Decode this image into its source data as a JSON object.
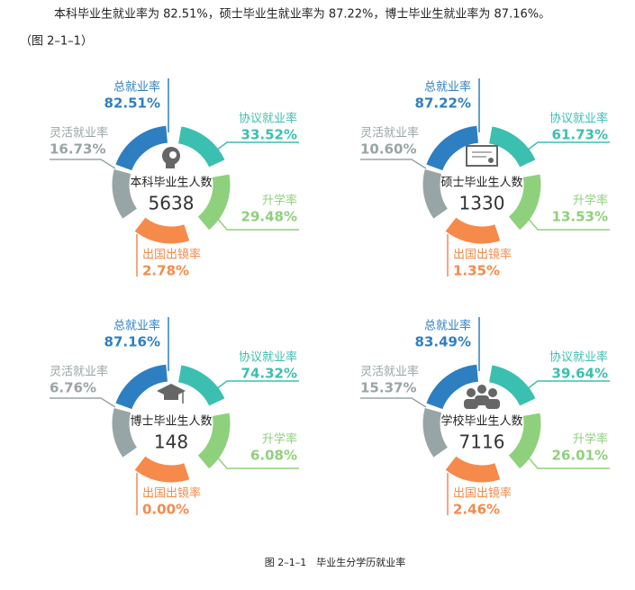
{
  "intro": {
    "text": "本科毕业生就业率为 82.51%，硕士毕业生就业率为 87.22%，博士毕业生就业率为 87.16%。",
    "figure_ref": "（图 2–1–1）"
  },
  "panels": [
    {
      "title": "本科毕业生人数",
      "count": "5638",
      "total_label": "总就业率",
      "total_value": "82.51%",
      "agreement_label": "协议就业率",
      "agreement_value": "33.52%",
      "further_label": "升学率",
      "further_value": "29.48%",
      "abroad_label": "出国出镜率",
      "abroad_value": "2.78%",
      "flexible_label": "灵活就业率",
      "flexible_value": "16.73%"
    },
    {
      "title": "硕士毕业生人数",
      "count": "1330",
      "total_label": "总就业率",
      "total_value": "87.22%",
      "agreement_label": "协议就业率",
      "agreement_value": "61.73%",
      "further_label": "升学率",
      "further_value": "13.53%",
      "abroad_label": "出国出镜率",
      "abroad_value": "1.35%",
      "flexible_label": "灵活就业率",
      "flexible_value": "10.60%"
    },
    {
      "title": "博士毕业生人数",
      "count": "148",
      "total_label": "总就业率",
      "total_value": "87.16%",
      "agreement_label": "协议就业率",
      "agreement_value": "74.32%",
      "further_label": "升学率",
      "further_value": "6.08%",
      "abroad_label": "出国出镜率",
      "abroad_value": "0.00%",
      "flexible_label": "灵活就业率",
      "flexible_value": "6.76%"
    },
    {
      "title": "学校毕业生人数",
      "count": "7116",
      "total_label": "总就业率",
      "total_value": "83.49%",
      "agreement_label": "协议就业率",
      "agreement_value": "39.64%",
      "further_label": "升学率",
      "further_value": "26.01%",
      "abroad_label": "出国出镜率",
      "abroad_value": "2.46%",
      "flexible_label": "灵活就业率",
      "flexible_value": "15.37%"
    }
  ],
  "caption": "图 2–1–1　毕业生分学历就业率"
}
